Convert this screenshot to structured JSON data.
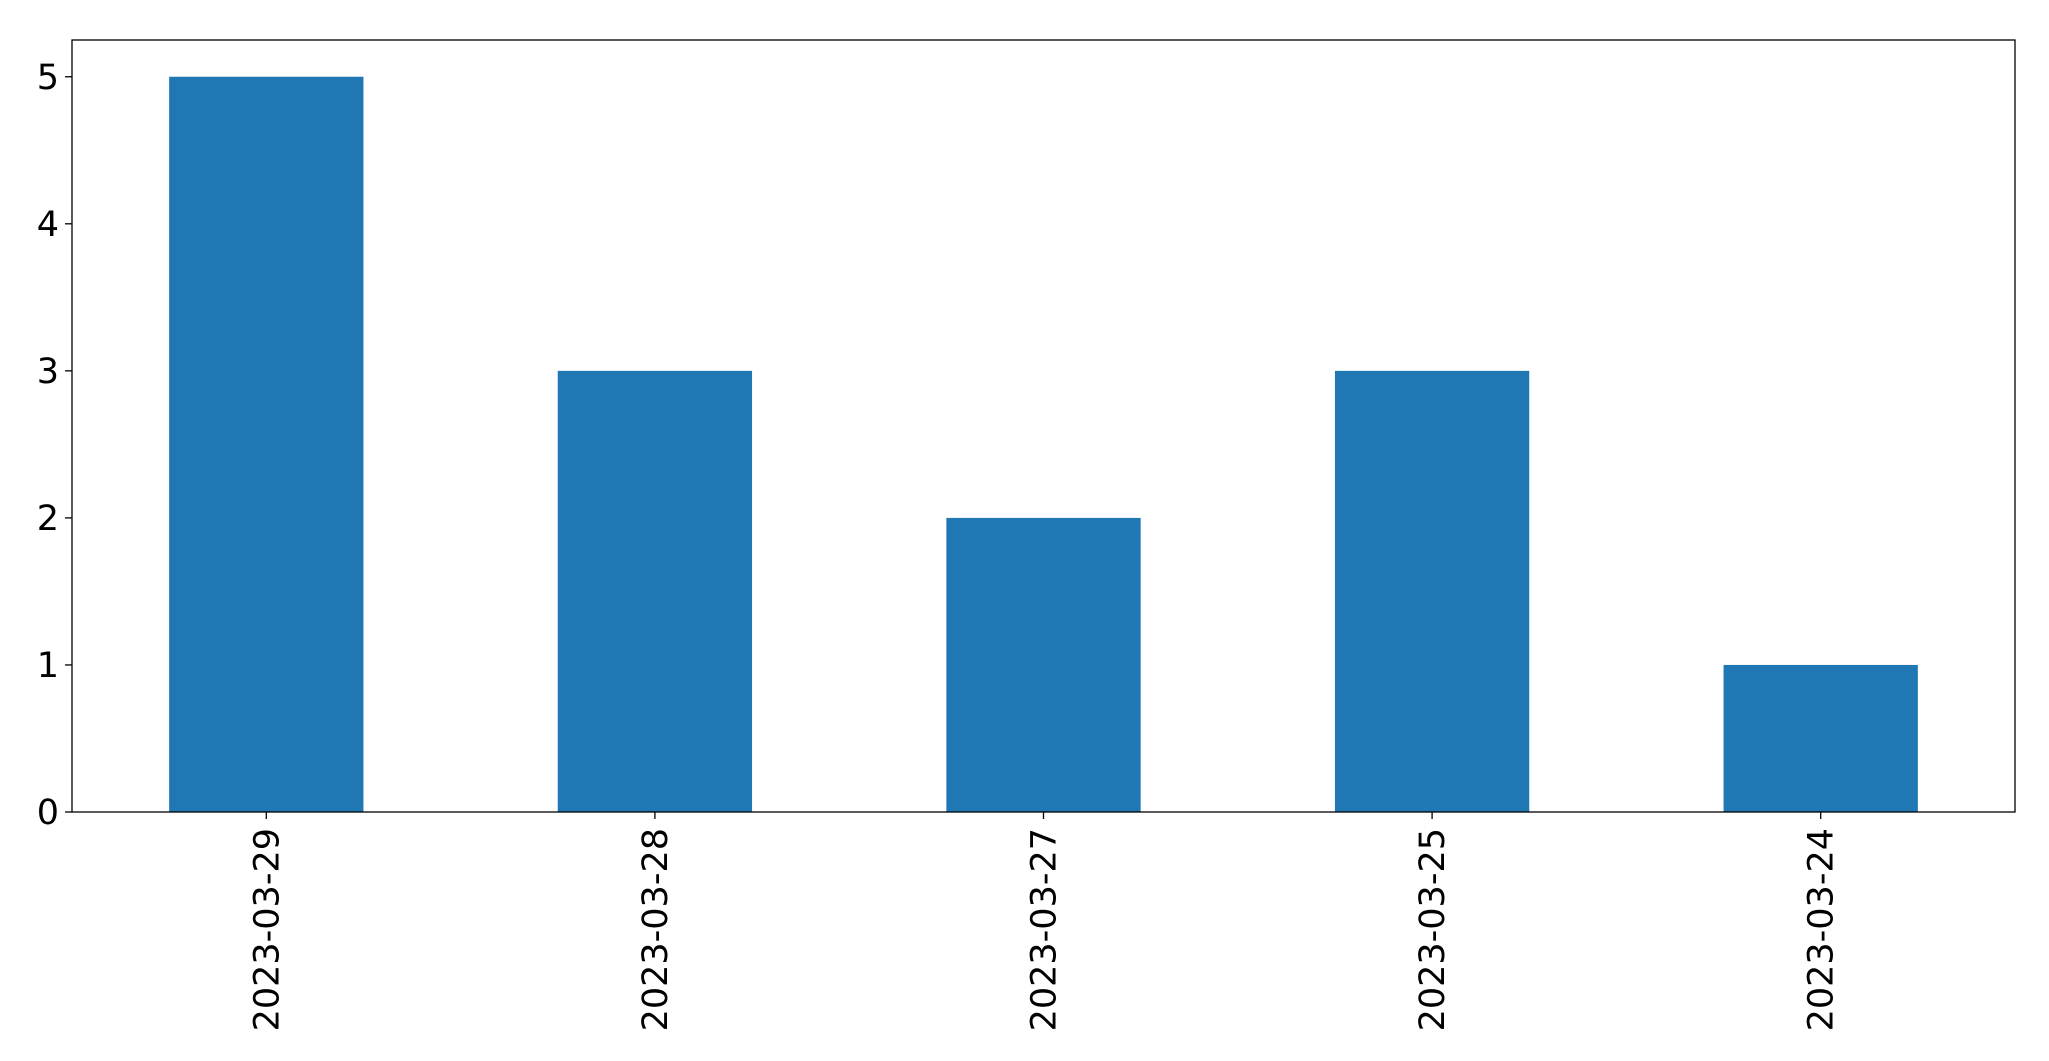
{
  "chart_data": {
    "type": "bar",
    "categories": [
      "2023-03-29",
      "2023-03-28",
      "2023-03-27",
      "2023-03-25",
      "2023-03-24"
    ],
    "values": [
      5,
      3,
      2,
      3,
      1
    ],
    "title": "",
    "xlabel": "",
    "ylabel": "",
    "ylim": [
      0,
      5.25
    ],
    "yticks": [
      0,
      1,
      2,
      3,
      4,
      5
    ],
    "grid": false,
    "legend": "none",
    "bar_color": "#1f77b4"
  }
}
